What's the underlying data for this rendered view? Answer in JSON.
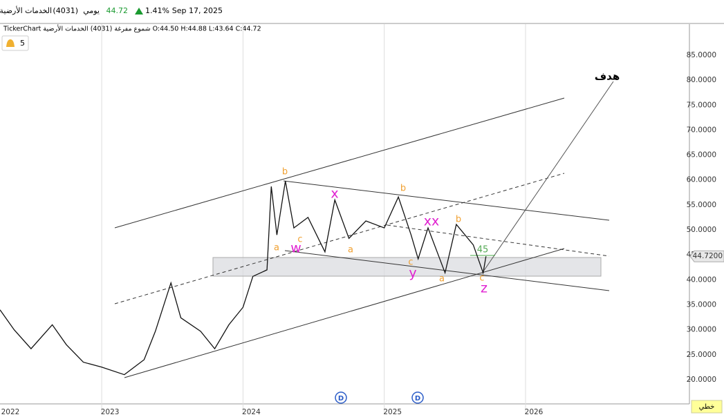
{
  "header": {
    "name": "الخدمات الأرضية",
    "code": "(4031)",
    "period": "يومي",
    "price": "44.72",
    "change": "1.41%",
    "date": "Sep 17, 2025"
  },
  "info_line": "TickerChart شموع مفرغة (4031) الخدمات الأرضية O:44.50 H:44.88 L:43.64 C:44.72",
  "alerts": "5",
  "chart_type_button": "خطي",
  "chart_data": {
    "type": "line",
    "x_start_label": "2022",
    "x": [
      2022.28,
      2022.38,
      2022.5,
      2022.65,
      2022.75,
      2022.87,
      2023.0,
      2023.16,
      2023.3,
      2023.38,
      2023.49,
      2023.56,
      2023.7,
      2023.8,
      2023.9,
      2024.0,
      2024.07,
      2024.17,
      2024.2,
      2024.24,
      2024.3,
      2024.36,
      2024.46,
      2024.58,
      2024.65,
      2024.75,
      2024.87,
      2025.0,
      2025.1,
      2025.19,
      2025.24,
      2025.31,
      2025.43,
      2025.51,
      2025.63,
      2025.7,
      2025.72
    ],
    "series": [
      {
        "color": "#111111",
        "values": [
          34,
          30,
          26.2,
          31,
          27,
          23.5,
          22.5,
          21,
          24,
          29.7,
          39.4,
          32.4,
          29.7,
          26.2,
          31,
          34.5,
          40.7,
          42,
          58.7,
          49,
          59.8,
          50.4,
          52.5,
          45.6,
          56,
          48.3,
          51.8,
          50.4,
          56.6,
          49,
          44.2,
          50.4,
          41.4,
          51.1,
          47,
          41.4,
          44.72
        ]
      }
    ],
    "xlim": [
      2022.28,
      2027.16
    ],
    "xticks": [
      2023,
      2024,
      2025,
      2026
    ],
    "ylim": [
      15.84,
      91.22
    ],
    "yticks": [
      {
        "value": 20,
        "label": "20.0000"
      },
      {
        "value": 25,
        "label": "25.0000"
      },
      {
        "value": 30,
        "label": "30.0000"
      },
      {
        "value": 35,
        "label": "35.0000"
      },
      {
        "value": 40,
        "label": "40.0000"
      },
      {
        "value": 45,
        "label": "45.0000"
      },
      {
        "value": 50,
        "label": "50.0000"
      },
      {
        "value": 55,
        "label": "55.0000"
      },
      {
        "value": 60,
        "label": "60.0000"
      },
      {
        "value": 65,
        "label": "65.0000"
      },
      {
        "value": 70,
        "label": "70.0000"
      },
      {
        "value": 75,
        "label": "75.0000"
      },
      {
        "value": 80,
        "label": "80.0000"
      },
      {
        "value": 85,
        "label": "85.0000"
      }
    ],
    "last_price": {
      "value": 44.72,
      "label": "44.7200"
    },
    "annotations": [
      "b",
      "a",
      "c",
      "w",
      "x",
      "a",
      "b",
      "c",
      "y",
      "xx",
      "a",
      "b",
      "45",
      "c",
      "z",
      "هدف"
    ],
    "events": [
      "D",
      "D"
    ]
  }
}
